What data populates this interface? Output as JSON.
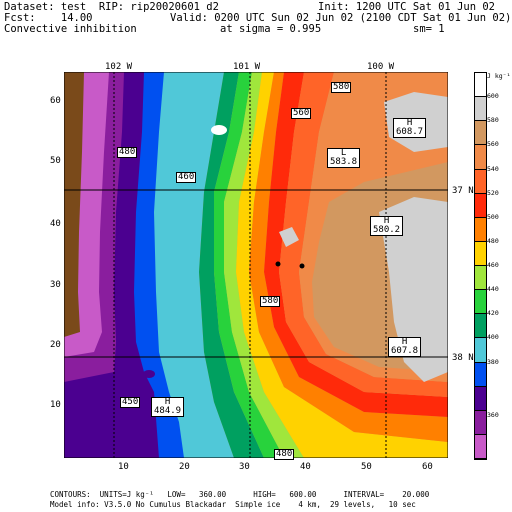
{
  "header": {
    "dataset": "Dataset: test  RIP: rip20020601 d2",
    "init": "Init: 1200 UTC Sat 01 Jun 02",
    "fcst": "Fcst:    14.00",
    "valid": "Valid: 0200 UTC Sun 02 Jun 02 (2100 CDT Sat 01 Jun 02)",
    "field": "Convective inhibition",
    "sigma": "at sigma = 0.995",
    "sm": "sm= 1"
  },
  "top_ticks": [
    "102 W",
    "101 W",
    "100 W"
  ],
  "right_ticks": [
    "37 N",
    "38 N"
  ],
  "y_ticks": [
    "60",
    "50",
    "40",
    "30",
    "20",
    "10"
  ],
  "x_ticks": [
    "10",
    "20",
    "30",
    "40",
    "50",
    "60"
  ],
  "contour_labels": [
    "580",
    "560",
    "480",
    "460",
    "580",
    "450",
    "480",
    "480"
  ],
  "highs_lows": [
    {
      "letter": "H",
      "value": "608.7"
    },
    {
      "letter": "L",
      "value": "583.8"
    },
    {
      "letter": "H",
      "value": "580.2"
    },
    {
      "letter": "H",
      "value": "607.8"
    },
    {
      "letter": "H",
      "value": "484.9"
    }
  ],
  "colorbar": {
    "unit": "J kg⁻¹",
    "levels": [
      "600",
      "580",
      "560",
      "540",
      "520",
      "500",
      "480",
      "460",
      "440",
      "420",
      "400",
      "380",
      "360"
    ],
    "colors": [
      "#ffffff",
      "#d0d0d0",
      "#d29860",
      "#f08a48",
      "#ff6428",
      "#ff2a0a",
      "#ff8000",
      "#ffd200",
      "#a0e63c",
      "#28d23c",
      "#00a060",
      "#50c8d8",
      "#0050f0",
      "#4b0090",
      "#8a1e9e",
      "#c85ac8"
    ]
  },
  "footer": {
    "line1": "CONTOURS:  UNITS=J kg⁻¹   LOW=   360.00      HIGH=   600.00      INTERVAL=    20.000",
    "line2": "Model info: V3.5.0 No Cumulus Blackadar  Simple ice    4 km,  29 levels,   10 sec"
  }
}
